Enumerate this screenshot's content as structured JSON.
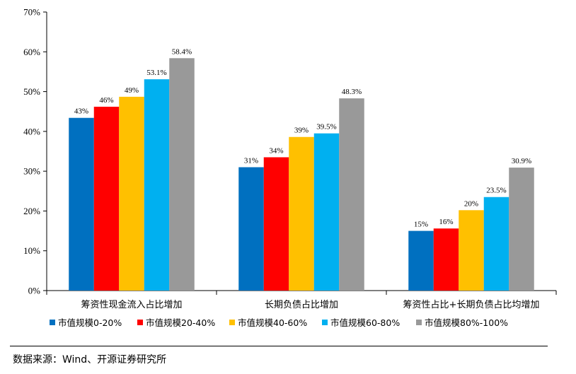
{
  "chart_data": {
    "type": "bar",
    "categories": [
      "筹资性现金流入占比增加",
      "长期负债占比增加",
      "筹资性占比+长期负债占比均增加"
    ],
    "series": [
      {
        "name": "市值规模0-20%",
        "color": "#0070C0",
        "values": [
          43.4,
          31.0,
          15.0
        ],
        "labels": [
          "43%",
          "31%",
          "15%"
        ]
      },
      {
        "name": "市值规模20-40%",
        "color": "#FF0000",
        "values": [
          46.2,
          33.5,
          15.6
        ],
        "labels": [
          "46%",
          "34%",
          "16%"
        ]
      },
      {
        "name": "市值规模40-60%",
        "color": "#FFC000",
        "values": [
          48.7,
          38.6,
          20.2
        ],
        "labels": [
          "49%",
          "39%",
          "20%"
        ]
      },
      {
        "name": "市值规模60-80%",
        "color": "#00B0F0",
        "values": [
          53.1,
          39.5,
          23.5
        ],
        "labels": [
          "53.1%",
          "39.5%",
          "23.5%"
        ]
      },
      {
        "name": "市值规模80%-100%",
        "color": "#999999",
        "values": [
          58.4,
          48.3,
          30.9
        ],
        "labels": [
          "58.4%",
          "48.3%",
          "30.9%"
        ]
      }
    ],
    "ylim": [
      0,
      70
    ],
    "yticks": [
      "0%",
      "10%",
      "20%",
      "30%",
      "40%",
      "50%",
      "60%",
      "70%"
    ],
    "legend_position": "bottom",
    "grid": false
  },
  "source": "数据来源：Wind、开源证券研究所"
}
